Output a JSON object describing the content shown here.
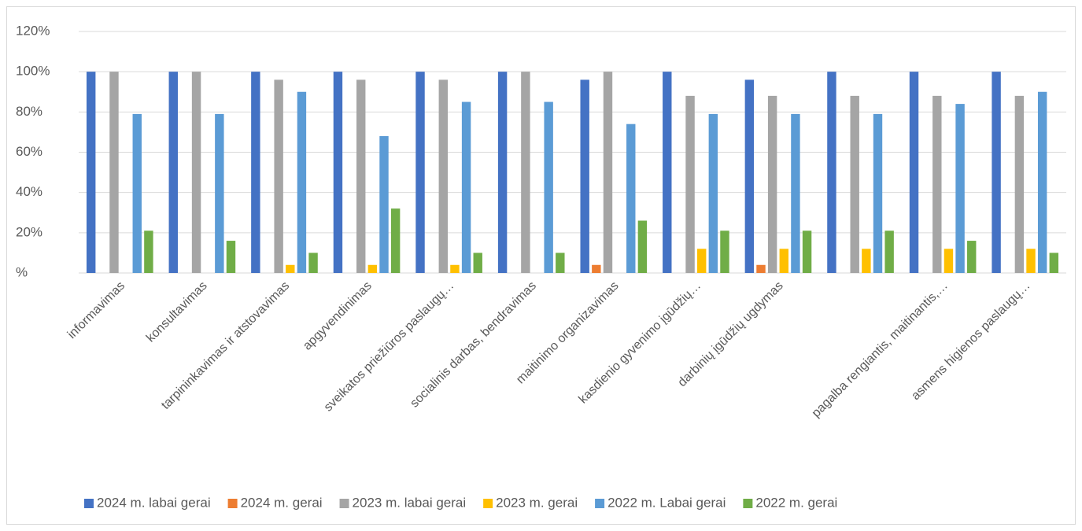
{
  "chart_data": {
    "type": "bar",
    "categories": [
      "informavimas",
      "konsultavimas",
      "tarpininkavimas ir atstovavimas",
      "apgyvendinimas",
      "sveikatos priežiūros paslaugų…",
      "socialinis darbas, bendravimas",
      "maitinimo organizavimas",
      "kasdienio gyvenimo įgūdžių…",
      "darbinių įgūdžių ugdymas",
      null,
      "pagalba rengiantis, maitinantis,…",
      "asmens higienos paslaugų…"
    ],
    "series": [
      {
        "name": "2024 m. labai gerai",
        "color": "#4472c4",
        "values": [
          100,
          100,
          100,
          100,
          100,
          100,
          96,
          100,
          96,
          100,
          100,
          100
        ]
      },
      {
        "name": "2024 m. gerai",
        "color": "#ed7d31",
        "values": [
          0,
          0,
          0,
          0,
          0,
          0,
          4,
          0,
          4,
          0,
          0,
          0
        ]
      },
      {
        "name": "2023 m. labai gerai",
        "color": "#a5a5a5",
        "values": [
          100,
          100,
          96,
          96,
          96,
          100,
          100,
          88,
          88,
          88,
          88,
          88
        ]
      },
      {
        "name": "2023 m. gerai",
        "color": "#ffc000",
        "values": [
          0,
          0,
          4,
          4,
          4,
          0,
          0,
          12,
          12,
          12,
          12,
          12
        ]
      },
      {
        "name": "2022 m. Labai gerai",
        "color": "#5b9bd5",
        "values": [
          79,
          79,
          90,
          68,
          85,
          85,
          74,
          79,
          79,
          79,
          84,
          90
        ]
      },
      {
        "name": "2022 m. gerai",
        "color": "#70ad47",
        "values": [
          21,
          16,
          10,
          32,
          10,
          10,
          26,
          21,
          21,
          21,
          16,
          10
        ]
      }
    ],
    "ylim": [
      0,
      120
    ],
    "yticks": [
      {
        "value": 0,
        "label": "%"
      },
      {
        "value": 20,
        "label": "20%"
      },
      {
        "value": 40,
        "label": "40%"
      },
      {
        "value": 60,
        "label": "60%"
      },
      {
        "value": 80,
        "label": "80%"
      },
      {
        "value": 100,
        "label": "100%"
      },
      {
        "value": 120,
        "label": "120%"
      }
    ],
    "grid": true,
    "legend": "bottom"
  }
}
